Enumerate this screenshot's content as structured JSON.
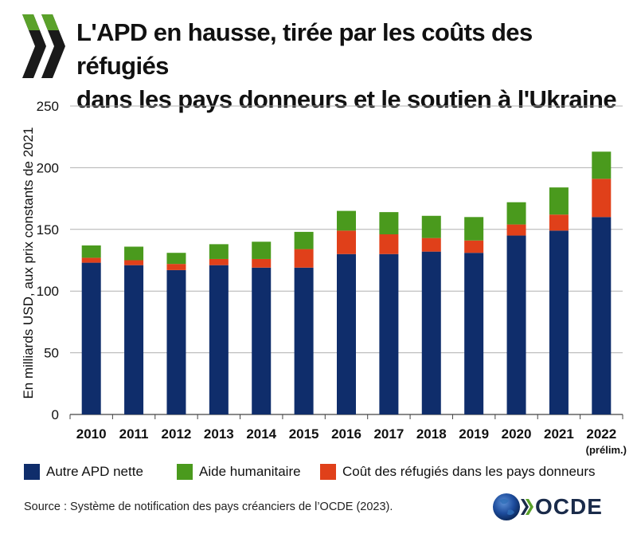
{
  "title": {
    "line1": "L'APD en hausse, tirée par les coûts des réfugiés",
    "line2": "dans les pays donneurs et le soutien à l'Ukraine"
  },
  "source": "Source : Système de notification des pays créanciers de l’OCDE (2023).",
  "brand": {
    "text": "OCDE"
  },
  "colors": {
    "autre_apd": "#0f2d6b",
    "humanitaire": "#4a9a1d",
    "refugies": "#e0401a",
    "grid": "#b0b0b0",
    "chevron": "#1a1a1a",
    "chevron_accent": "#5aa12a"
  },
  "legend": [
    {
      "label": "Autre APD nette",
      "color": "#0f2d6b"
    },
    {
      "label": "Aide humanitaire",
      "color": "#4a9a1d"
    },
    {
      "label": "Coût des réfugiés dans les pays donneurs",
      "color": "#e0401a"
    }
  ],
  "chart_data": {
    "type": "bar",
    "stacked": true,
    "title": "L'APD en hausse, tirée par les coûts des réfugiés dans les pays donneurs et le soutien à l'Ukraine",
    "xlabel": "",
    "ylabel": "En milliards USD, aux prix constants de 2021",
    "ylim": [
      0,
      250
    ],
    "yticks": [
      0,
      50,
      100,
      150,
      200,
      250
    ],
    "grid": true,
    "legend_position": "bottom",
    "categories": [
      "2010",
      "2011",
      "2012",
      "2013",
      "2014",
      "2015",
      "2016",
      "2017",
      "2018",
      "2019",
      "2020",
      "2021",
      "2022"
    ],
    "category_sublabels": [
      "",
      "",
      "",
      "",
      "",
      "",
      "",
      "",
      "",
      "",
      "",
      "",
      "(prélim.)"
    ],
    "series": [
      {
        "name": "Autre APD nette",
        "color": "#0f2d6b",
        "values": [
          123,
          121,
          117,
          121,
          119,
          119,
          130,
          130,
          132,
          131,
          145,
          149,
          160
        ]
      },
      {
        "name": "Coût des réfugiés dans les pays donneurs",
        "color": "#e0401a",
        "values": [
          4,
          4,
          5,
          5,
          7,
          15,
          19,
          16,
          11,
          10,
          9,
          13,
          31
        ]
      },
      {
        "name": "Aide humanitaire",
        "color": "#4a9a1d",
        "values": [
          10,
          11,
          9,
          12,
          14,
          14,
          16,
          18,
          18,
          19,
          18,
          22,
          22
        ]
      }
    ]
  }
}
